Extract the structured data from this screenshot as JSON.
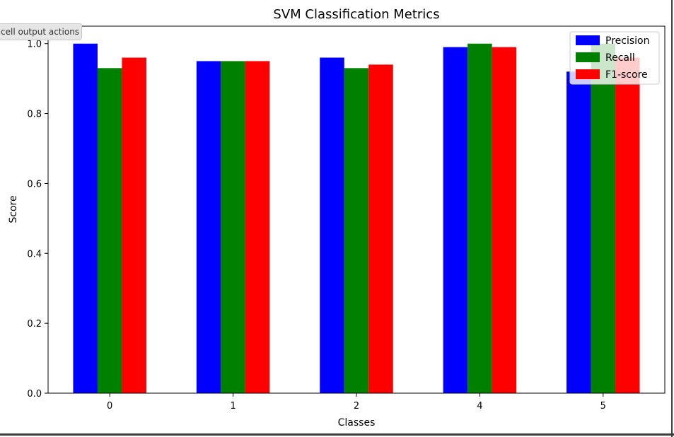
{
  "tooltip": {
    "text": "cell output actions"
  },
  "chart_data": {
    "type": "bar",
    "title": "SVM Classification Metrics",
    "xlabel": "Classes",
    "ylabel": "Score",
    "categories": [
      "0",
      "1",
      "2",
      "4",
      "5"
    ],
    "series": [
      {
        "name": "Precision",
        "color": "#0000ff",
        "values": [
          1.0,
          0.95,
          0.96,
          0.99,
          0.92
        ]
      },
      {
        "name": "Recall",
        "color": "#008000",
        "values": [
          0.93,
          0.95,
          0.93,
          1.0,
          1.0
        ]
      },
      {
        "name": "F1-score",
        "color": "#ff0000",
        "values": [
          0.96,
          0.95,
          0.94,
          0.99,
          0.96
        ]
      }
    ],
    "ylim": [
      0,
      1.05
    ],
    "yticks": [
      "0.0",
      "0.2",
      "0.4",
      "0.6",
      "0.8",
      "1.0"
    ],
    "grid": false,
    "legend_position": "top-right"
  }
}
